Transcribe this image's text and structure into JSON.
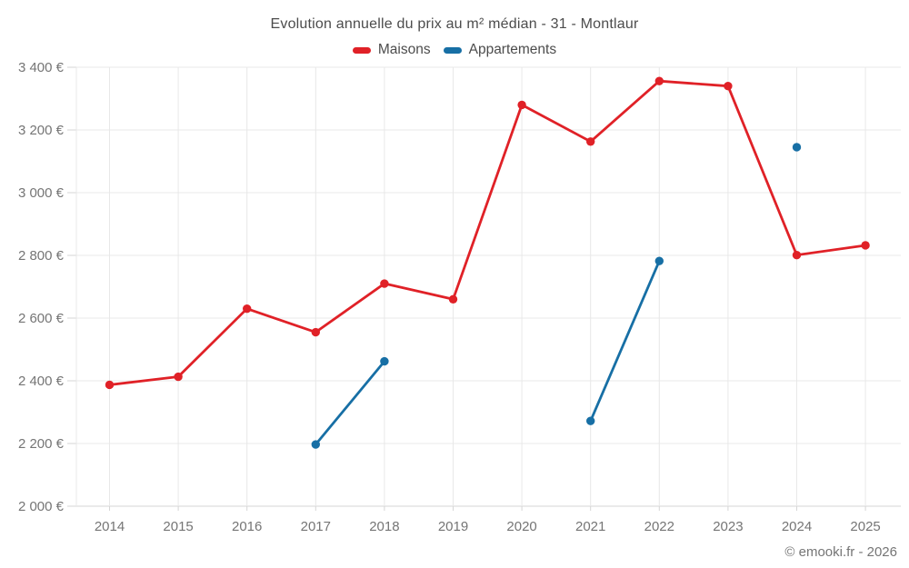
{
  "chart": {
    "title": "Evolution annuelle du prix au m² médian - 31 - Montlaur",
    "attribution": "© emooki.fr - 2026"
  },
  "legend": {
    "items": [
      {
        "label": "Maisons",
        "color": "#e02127"
      },
      {
        "label": "Appartements",
        "color": "#176fa5"
      }
    ]
  },
  "chart_data": {
    "type": "line",
    "title": "Evolution annuelle du prix au m² médian - 31 - Montlaur",
    "categories": [
      "2014",
      "2015",
      "2016",
      "2017",
      "2018",
      "2019",
      "2020",
      "2021",
      "2022",
      "2023",
      "2024",
      "2025"
    ],
    "series": [
      {
        "name": "Maisons",
        "color": "#e02127",
        "values": [
          2387,
          2413,
          2630,
          2555,
          2710,
          2660,
          3280,
          3163,
          3356,
          3340,
          2801,
          2832
        ]
      },
      {
        "name": "Appartements",
        "color": "#176fa5",
        "values": [
          null,
          null,
          null,
          2197,
          2462,
          null,
          null,
          2272,
          2782,
          null,
          3145,
          null
        ]
      }
    ],
    "xlabel": "",
    "ylabel": "",
    "ylim": [
      2000,
      3400
    ],
    "ytick_step": 200,
    "ytick_labels": [
      "2 000 €",
      "2 200 €",
      "2 400 €",
      "2 600 €",
      "2 800 €",
      "3 000 €",
      "3 200 €",
      "3 400 €"
    ],
    "currency": "€",
    "grid": true,
    "legend_position": "top",
    "marker": "circle",
    "attribution": "© emooki.fr - 2026"
  }
}
